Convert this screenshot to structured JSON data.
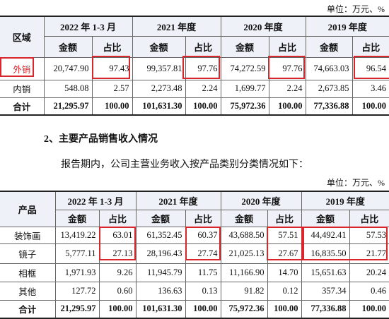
{
  "unit_top": "单位：万元、%",
  "table1": {
    "corner": "区域",
    "years": [
      "2022 年 1-3 月",
      "2021 年度",
      "2020 年度",
      "2019 年度"
    ],
    "subheaders": [
      "金额",
      "占比",
      "金额",
      "占比",
      "金额",
      "占比",
      "金额",
      "占比"
    ],
    "rows": [
      [
        "外销",
        "20,747.90",
        "97.43",
        "99,357.81",
        "97.76",
        "74,272.59",
        "97.76",
        "74,663.03",
        "96.54"
      ],
      [
        "内销",
        "548.08",
        "2.57",
        "2,273.48",
        "2.24",
        "1,699.77",
        "2.24",
        "2,673.85",
        "3.46"
      ],
      [
        "合计",
        "21,295.97",
        "100.00",
        "101,631.30",
        "100.00",
        "75,972.36",
        "100.00",
        "77,336.88",
        "100.00"
      ]
    ]
  },
  "section_heading": "2、主要产品销售收入情况",
  "intro": "报告期内，公司主营业务收入按产品类别分类情况如下：",
  "unit_bottom": "单位：万元、%",
  "table2": {
    "corner": "产品",
    "years": [
      "2022 年 1-3 月",
      "2021 年度",
      "2020 年度",
      "2019 年度"
    ],
    "subheaders": [
      "金额",
      "占比",
      "金额",
      "占比",
      "金额",
      "占比",
      "金额",
      "占比"
    ],
    "rows": [
      [
        "装饰画",
        "13,419.22",
        "63.01",
        "61,352.45",
        "60.37",
        "43,688.50",
        "57.51",
        "44,492.41",
        "57.53"
      ],
      [
        "镜子",
        "5,777.11",
        "27.13",
        "28,196.43",
        "27.74",
        "21,025.13",
        "27.67",
        "16,835.50",
        "21.77"
      ],
      [
        "相框",
        "1,971.93",
        "9.26",
        "11,945.79",
        "11.75",
        "11,166.90",
        "14.70",
        "15,651.63",
        "20.24"
      ],
      [
        "其他",
        "127.72",
        "0.60",
        "136.63",
        "0.13",
        "91.82",
        "0.12",
        "357.34",
        "0.46"
      ],
      [
        "合计",
        "21,295.97",
        "100.00",
        "101,631.30",
        "100.00",
        "75,972.36",
        "100.00",
        "77,336.88",
        "100.00"
      ]
    ]
  }
}
